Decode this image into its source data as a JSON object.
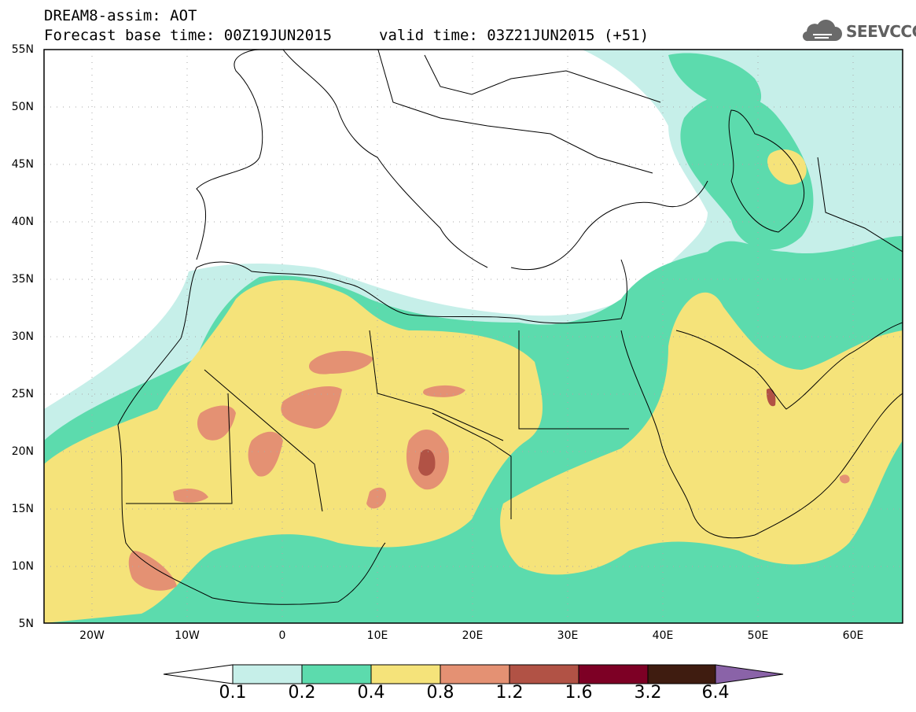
{
  "header": {
    "line1": "DREAM8-assim: AOT",
    "line2": "Forecast base time: 00Z19JUN2015",
    "valid": "valid time: 03Z21JUN2015 (+51)"
  },
  "logo": {
    "text": "SEEVCCC",
    "icon": "cloud-icon"
  },
  "map": {
    "region": {
      "lon": [
        -25,
        65
      ],
      "lat": [
        5,
        55
      ]
    },
    "y_ticks": [
      "55N",
      "50N",
      "45N",
      "40N",
      "35N",
      "30N",
      "25N",
      "20N",
      "15N",
      "10N",
      "5N"
    ],
    "x_ticks": [
      "20W",
      "10W",
      "0",
      "10E",
      "20E",
      "30E",
      "40E",
      "50E",
      "60E"
    ],
    "grid": true,
    "colorbar": {
      "labels": [
        "0.1",
        "0.2",
        "0.4",
        "0.8",
        "1.2",
        "1.6",
        "3.2",
        "6.4"
      ],
      "colors": [
        "#ffffff",
        "#c6efe9",
        "#5cdbad",
        "#f5e37a",
        "#e49173",
        "#b15245",
        "#7d0025",
        "#3f1c10",
        "#8a63a8"
      ]
    }
  }
}
